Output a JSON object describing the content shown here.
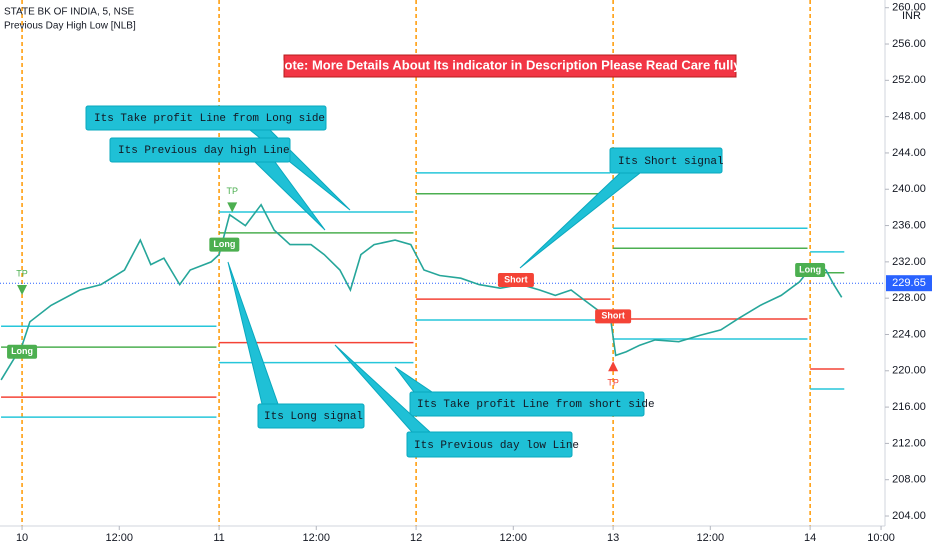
{
  "chart_data": {
    "type": "line",
    "title": "STATE BK OF INDIA, 5, NSE",
    "subtitle": "Previous Day High Low [NLB]",
    "currency": "INR",
    "note": "Note: More Details About Its indicator in Description Please Read Care fully!",
    "x": [
      -8,
      0,
      3,
      11,
      22,
      30,
      39,
      45,
      49,
      54,
      60,
      64,
      72,
      75,
      79,
      85,
      91,
      96,
      102,
      110,
      115,
      121,
      125,
      129,
      134,
      142,
      148,
      153,
      159,
      167,
      174,
      182,
      190,
      197,
      203,
      209,
      214,
      220,
      224,
      226,
      230,
      235,
      241,
      250,
      258,
      266,
      273,
      281,
      289,
      296,
      299,
      302,
      306,
      309,
      312
    ],
    "values": [
      219.0,
      222.8,
      225.4,
      227.2,
      228.9,
      229.5,
      231.1,
      234.4,
      231.7,
      232.4,
      229.5,
      231.1,
      232.0,
      232.8,
      237.2,
      236.0,
      238.3,
      235.5,
      233.9,
      233.9,
      232.8,
      231.1,
      228.9,
      232.8,
      233.9,
      234.4,
      233.9,
      231.1,
      230.5,
      230.2,
      229.5,
      229.1,
      229.5,
      228.9,
      228.3,
      228.9,
      227.8,
      226.5,
      225.8,
      221.7,
      222.1,
      222.8,
      223.4,
      223.2,
      223.9,
      224.5,
      225.8,
      227.2,
      228.3,
      229.8,
      230.9,
      231.7,
      231.1,
      229.5,
      228.1
    ],
    "color": "#26a69a",
    "levels": [
      {
        "x": [
          -8,
          74
        ],
        "value": 224.9,
        "color": "#26c6da"
      },
      {
        "x": [
          -8,
          74
        ],
        "value": 222.6,
        "color": "#4caf50"
      },
      {
        "x": [
          -8,
          74
        ],
        "value": 217.1,
        "color": "#f44336"
      },
      {
        "x": [
          -8,
          74
        ],
        "value": 214.9,
        "color": "#26c6da"
      },
      {
        "x": [
          75,
          149
        ],
        "value": 237.5,
        "color": "#26c6da"
      },
      {
        "x": [
          75,
          149
        ],
        "value": 235.2,
        "color": "#4caf50"
      },
      {
        "x": [
          75,
          149
        ],
        "value": 223.1,
        "color": "#f44336"
      },
      {
        "x": [
          75,
          149
        ],
        "value": 220.9,
        "color": "#26c6da"
      },
      {
        "x": [
          150,
          224
        ],
        "value": 241.8,
        "color": "#26c6da"
      },
      {
        "x": [
          150,
          224
        ],
        "value": 239.5,
        "color": "#4caf50"
      },
      {
        "x": [
          150,
          224
        ],
        "value": 227.9,
        "color": "#f44336"
      },
      {
        "x": [
          150,
          224
        ],
        "value": 225.6,
        "color": "#26c6da"
      },
      {
        "x": [
          225,
          299
        ],
        "value": 235.7,
        "color": "#26c6da"
      },
      {
        "x": [
          225,
          299
        ],
        "value": 233.5,
        "color": "#4caf50"
      },
      {
        "x": [
          225,
          299
        ],
        "value": 225.7,
        "color": "#f44336"
      },
      {
        "x": [
          225,
          299
        ],
        "value": 223.5,
        "color": "#26c6da"
      },
      {
        "x": [
          300,
          313
        ],
        "value": 233.1,
        "color": "#26c6da"
      },
      {
        "x": [
          300,
          313
        ],
        "value": 230.8,
        "color": "#4caf50"
      },
      {
        "x": [
          300,
          313
        ],
        "value": 220.2,
        "color": "#f44336"
      },
      {
        "x": [
          300,
          313
        ],
        "value": 218.0,
        "color": "#26c6da"
      }
    ],
    "session_breaks": [
      0,
      75,
      150,
      225,
      300
    ],
    "break_color": "#ff9800",
    "signals": [
      {
        "label": "Long",
        "x": 0,
        "y": 222.1,
        "color": "#4caf50"
      },
      {
        "label": "Long",
        "x": 77,
        "y": 233.9,
        "color": "#4caf50"
      },
      {
        "label": "Short",
        "x": 188,
        "y": 230.0,
        "color": "#f44336"
      },
      {
        "label": "Short",
        "x": 225,
        "y": 226.0,
        "color": "#f44336"
      },
      {
        "label": "Long",
        "x": 300,
        "y": 231.1,
        "color": "#4caf50"
      }
    ],
    "tp_markers": [
      {
        "label": "TP",
        "x": 0,
        "y": 228.9,
        "direction": "down",
        "color": "#4caf50"
      },
      {
        "label": "TP",
        "x": 80,
        "y": 238.0,
        "direction": "down",
        "color": "#4caf50"
      },
      {
        "label": "TP",
        "x": 225,
        "y": 220.5,
        "direction": "up",
        "color": "#f44336"
      }
    ],
    "last_price": {
      "value": 229.65,
      "label": "229.65"
    },
    "last_price_color": "#2962ff",
    "annotations": [
      "Its Take profit Line from Long side",
      "Its Previous day high Line",
      "Its Short signal",
      "Its Long signal",
      "Its Take profit Line from short side",
      "Its Previous day low Line"
    ],
    "xlim": [
      -8.4,
      328.5
    ],
    "ylim": [
      202.9,
      260.85
    ],
    "xticks": [
      {
        "value": 0,
        "label": "10"
      },
      {
        "value": 37,
        "label": "12:00"
      },
      {
        "value": 75,
        "label": "11"
      },
      {
        "value": 112,
        "label": "12:00"
      },
      {
        "value": 150,
        "label": "12"
      },
      {
        "value": 187,
        "label": "12:00"
      },
      {
        "value": 225,
        "label": "13"
      },
      {
        "value": 262,
        "label": "12:00"
      },
      {
        "value": 300,
        "label": "14"
      },
      {
        "value": 327,
        "label": "10:00"
      }
    ],
    "yticks": [
      {
        "value": 204,
        "label": "204.00"
      },
      {
        "value": 208,
        "label": "208.00"
      },
      {
        "value": 212,
        "label": "212.00"
      },
      {
        "value": 216,
        "label": "216.00"
      },
      {
        "value": 220,
        "label": "220.00"
      },
      {
        "value": 224,
        "label": "224.00"
      },
      {
        "value": 228,
        "label": "228.00"
      },
      {
        "value": 232,
        "label": "232.00"
      },
      {
        "value": 236,
        "label": "236.00"
      },
      {
        "value": 240,
        "label": "240.00"
      },
      {
        "value": 244,
        "label": "244.00"
      },
      {
        "value": 248,
        "label": "248.00"
      },
      {
        "value": 252,
        "label": "252.00"
      },
      {
        "value": 256,
        "label": "256.00"
      },
      {
        "value": 260,
        "label": "260.00"
      }
    ]
  }
}
